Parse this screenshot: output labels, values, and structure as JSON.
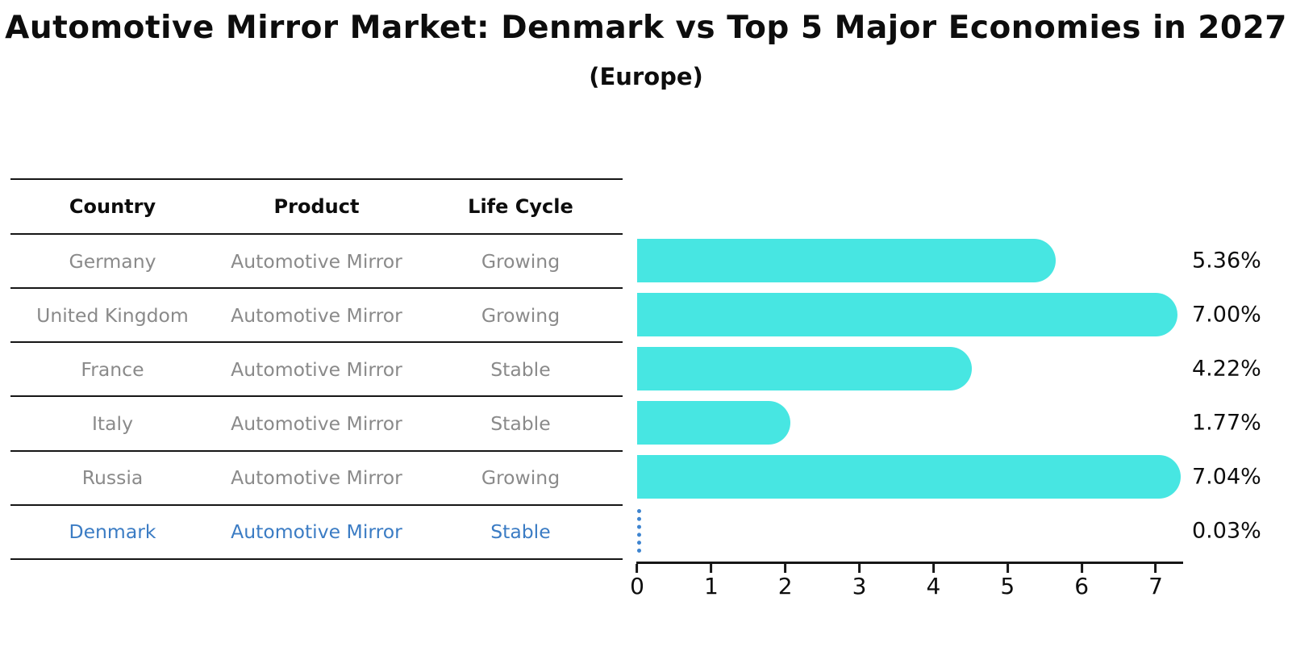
{
  "title": "Automotive Mirror Market: Denmark vs Top 5 Major Economies in 2027",
  "subtitle": "(Europe)",
  "table": {
    "headers": [
      "Country",
      "Product",
      "Life Cycle"
    ],
    "rows": [
      {
        "country": "Germany",
        "product": "Automotive Mirror",
        "life_cycle": "Growing"
      },
      {
        "country": "United Kingdom",
        "product": "Automotive Mirror",
        "life_cycle": "Growing"
      },
      {
        "country": "France",
        "product": "Automotive Mirror",
        "life_cycle": "Stable"
      },
      {
        "country": "Italy",
        "product": "Automotive Mirror",
        "life_cycle": "Stable"
      },
      {
        "country": "Russia",
        "product": "Automotive Mirror",
        "life_cycle": "Growing"
      },
      {
        "country": "Denmark",
        "product": "Automotive Mirror",
        "life_cycle": "Stable"
      }
    ]
  },
  "chart_data": {
    "type": "bar",
    "orientation": "horizontal",
    "title": "Automotive Mirror Market: Denmark vs Top 5 Major Economies in 2027",
    "subtitle": "(Europe)",
    "categories": [
      "Germany",
      "United Kingdom",
      "France",
      "Italy",
      "Russia",
      "Denmark"
    ],
    "values": [
      5.36,
      7.0,
      4.22,
      1.77,
      7.04,
      0.03
    ],
    "value_labels": [
      "5.36%",
      "7.00%",
      "4.22%",
      "1.77%",
      "7.04%",
      "0.03%"
    ],
    "x_ticks": [
      "0",
      "1",
      "2",
      "3",
      "4",
      "5",
      "6",
      "7"
    ],
    "xlim": [
      0,
      7.38
    ],
    "grid": false,
    "legend": "none",
    "bar_color": "#47e6e2",
    "highlight_country": "Denmark",
    "highlight_color": "#3f85d0",
    "highlight_text_color": "#3b7cc4",
    "unit": "percent"
  }
}
